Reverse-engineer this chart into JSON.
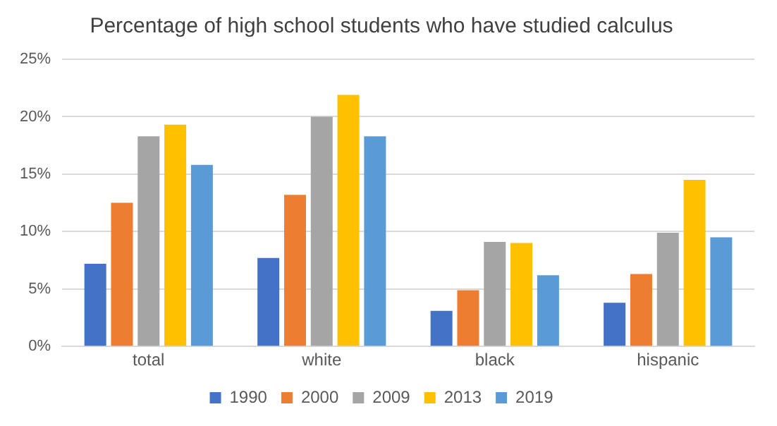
{
  "chart_data": {
    "type": "bar",
    "title": "Percentage of high school students who have studied calculus",
    "categories": [
      "total",
      "white",
      "black",
      "hispanic"
    ],
    "series": [
      {
        "name": "1990",
        "color": "#4472c4",
        "values": [
          7.2,
          7.7,
          3.1,
          3.8
        ]
      },
      {
        "name": "2000",
        "color": "#ed7d31",
        "values": [
          12.5,
          13.2,
          4.9,
          6.3
        ]
      },
      {
        "name": "2009",
        "color": "#a5a5a5",
        "values": [
          18.3,
          20.0,
          9.1,
          9.9
        ]
      },
      {
        "name": "2013",
        "color": "#ffc000",
        "values": [
          19.3,
          21.9,
          9.0,
          14.5
        ]
      },
      {
        "name": "2019",
        "color": "#5b9bd5",
        "values": [
          15.8,
          18.3,
          6.2,
          9.5
        ]
      }
    ],
    "ylim": [
      0,
      25
    ],
    "yticks": [
      {
        "value": 0,
        "label": "0%"
      },
      {
        "value": 5,
        "label": "5%"
      },
      {
        "value": 10,
        "label": "10%"
      },
      {
        "value": 15,
        "label": "15%"
      },
      {
        "value": 20,
        "label": "20%"
      },
      {
        "value": 25,
        "label": "25%"
      }
    ],
    "grid": "y",
    "legend": "bottom"
  }
}
